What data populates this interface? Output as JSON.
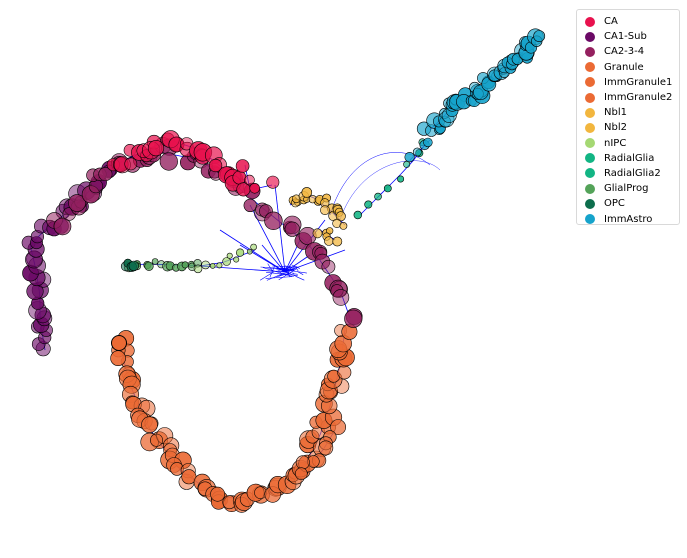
{
  "chart_data": {
    "type": "scatter",
    "title": "",
    "xlabel": "",
    "ylabel": "",
    "axes": "off",
    "grid": false,
    "legend_position": "top-right",
    "edge_color": "#0000ff",
    "series": [
      {
        "name": "CA",
        "color": "#e8124e"
      },
      {
        "name": "CA1-Sub",
        "color": "#6b0a66"
      },
      {
        "name": "CA2-3-4",
        "color": "#94205f"
      },
      {
        "name": "Granule",
        "color": "#eb6a34"
      },
      {
        "name": "ImmGranule1",
        "color": "#eb6a34"
      },
      {
        "name": "ImmGranule2",
        "color": "#eb6a34"
      },
      {
        "name": "Nbl1",
        "color": "#f2b63e"
      },
      {
        "name": "Nbl2",
        "color": "#f2b63e"
      },
      {
        "name": "nIPC",
        "color": "#a5d873"
      },
      {
        "name": "RadialGlia",
        "color": "#12b584"
      },
      {
        "name": "RadialGlia2",
        "color": "#12b584"
      },
      {
        "name": "GlialProg",
        "color": "#54a359"
      },
      {
        "name": "OPC",
        "color": "#0d6e4d"
      },
      {
        "name": "ImmAstro",
        "color": "#16a3cb"
      }
    ]
  }
}
